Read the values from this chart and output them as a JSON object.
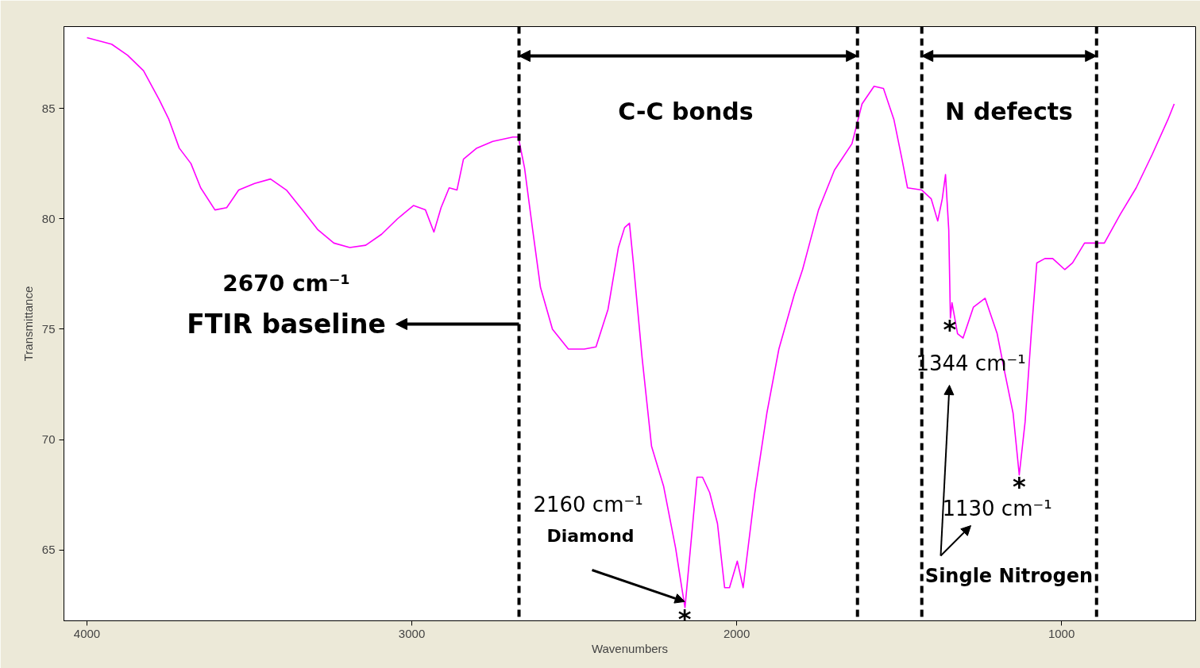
{
  "chart_data": {
    "type": "line",
    "xlabel": "Wavenumbers",
    "ylabel": "Transmittance",
    "xlim": [
      4071,
      587
    ],
    "ylim": [
      61.8,
      88.7
    ],
    "xticks": [
      4000,
      3000,
      2000,
      1000
    ],
    "yticks": [
      65,
      70,
      75,
      80,
      85
    ],
    "x": [
      4000,
      3924,
      3875,
      3826,
      3778,
      3748,
      3716,
      3680,
      3650,
      3606,
      3570,
      3533,
      3484,
      3435,
      3386,
      3337,
      3289,
      3240,
      3191,
      3142,
      3093,
      3044,
      2995,
      2958,
      2932,
      2910,
      2885,
      2861,
      2841,
      2800,
      2751,
      2689,
      2672,
      2653,
      2628,
      2604,
      2567,
      2518,
      2469,
      2433,
      2396,
      2364,
      2345,
      2330,
      2318,
      2291,
      2262,
      2225,
      2188,
      2169,
      2159,
      2149,
      2122,
      2105,
      2083,
      2059,
      2037,
      2022,
      1998,
      1980,
      1944,
      1907,
      1870,
      1822,
      1797,
      1748,
      1699,
      1645,
      1614,
      1577,
      1548,
      1516,
      1491,
      1474,
      1430,
      1401,
      1381,
      1367,
      1357,
      1347,
      1342,
      1337,
      1320,
      1303,
      1271,
      1235,
      1198,
      1174,
      1149,
      1130,
      1112,
      1093,
      1076,
      1051,
      1027,
      990,
      966,
      929,
      892,
      868,
      819,
      770,
      721,
      672,
      653
    ],
    "series": [
      {
        "color": "#ff00ff",
        "values": [
          88.2,
          87.9,
          87.4,
          86.7,
          85.4,
          84.5,
          83.2,
          82.5,
          81.4,
          80.4,
          80.5,
          81.3,
          81.6,
          81.8,
          81.3,
          80.4,
          79.5,
          78.9,
          78.7,
          78.8,
          79.3,
          80.0,
          80.6,
          80.4,
          79.4,
          80.5,
          81.4,
          81.3,
          82.7,
          83.2,
          83.5,
          83.7,
          83.7,
          82.3,
          79.5,
          76.9,
          75.0,
          74.1,
          74.1,
          74.2,
          75.9,
          78.7,
          79.6,
          79.8,
          78.0,
          73.7,
          69.7,
          67.9,
          65.1,
          63.3,
          62.4,
          64.0,
          68.3,
          68.3,
          67.6,
          66.2,
          63.3,
          63.3,
          64.5,
          63.3,
          67.6,
          71.2,
          74.1,
          76.6,
          77.7,
          80.4,
          82.2,
          83.4,
          85.2,
          86.0,
          85.9,
          84.5,
          82.7,
          81.4,
          81.3,
          80.9,
          79.9,
          80.9,
          82.0,
          79.5,
          75.5,
          76.2,
          74.8,
          74.6,
          76.0,
          76.4,
          74.8,
          73.0,
          71.2,
          68.4,
          70.8,
          74.8,
          78.0,
          78.2,
          78.2,
          77.7,
          78.0,
          78.9,
          78.9,
          78.9,
          80.2,
          81.4,
          82.9,
          84.5,
          85.2
        ]
      }
    ],
    "ref_lines": [
      {
        "axis": "x",
        "value": 2670,
        "line_style": "dashed",
        "color": "#000000"
      },
      {
        "axis": "x",
        "value": 1628,
        "line_style": "dashed",
        "color": "#000000"
      },
      {
        "axis": "x",
        "value": 1430,
        "line_style": "dashed",
        "color": "#000000"
      },
      {
        "axis": "x",
        "value": 892,
        "line_style": "dashed",
        "color": "#000000"
      }
    ],
    "annotations": [
      "2670 cm⁻¹",
      "FTIR baseline",
      "C-C bonds",
      "N defects",
      "2160 cm⁻¹",
      "Diamond",
      {
        "text": "*",
        "x": 2160,
        "y": 62.4
      },
      "1344 cm⁻¹",
      {
        "text": "*",
        "x": 1344,
        "y": 75.5
      },
      "1130 cm⁻¹",
      {
        "text": "*",
        "x": 1130,
        "y": 68.4
      },
      "Single Nitrogen"
    ]
  }
}
